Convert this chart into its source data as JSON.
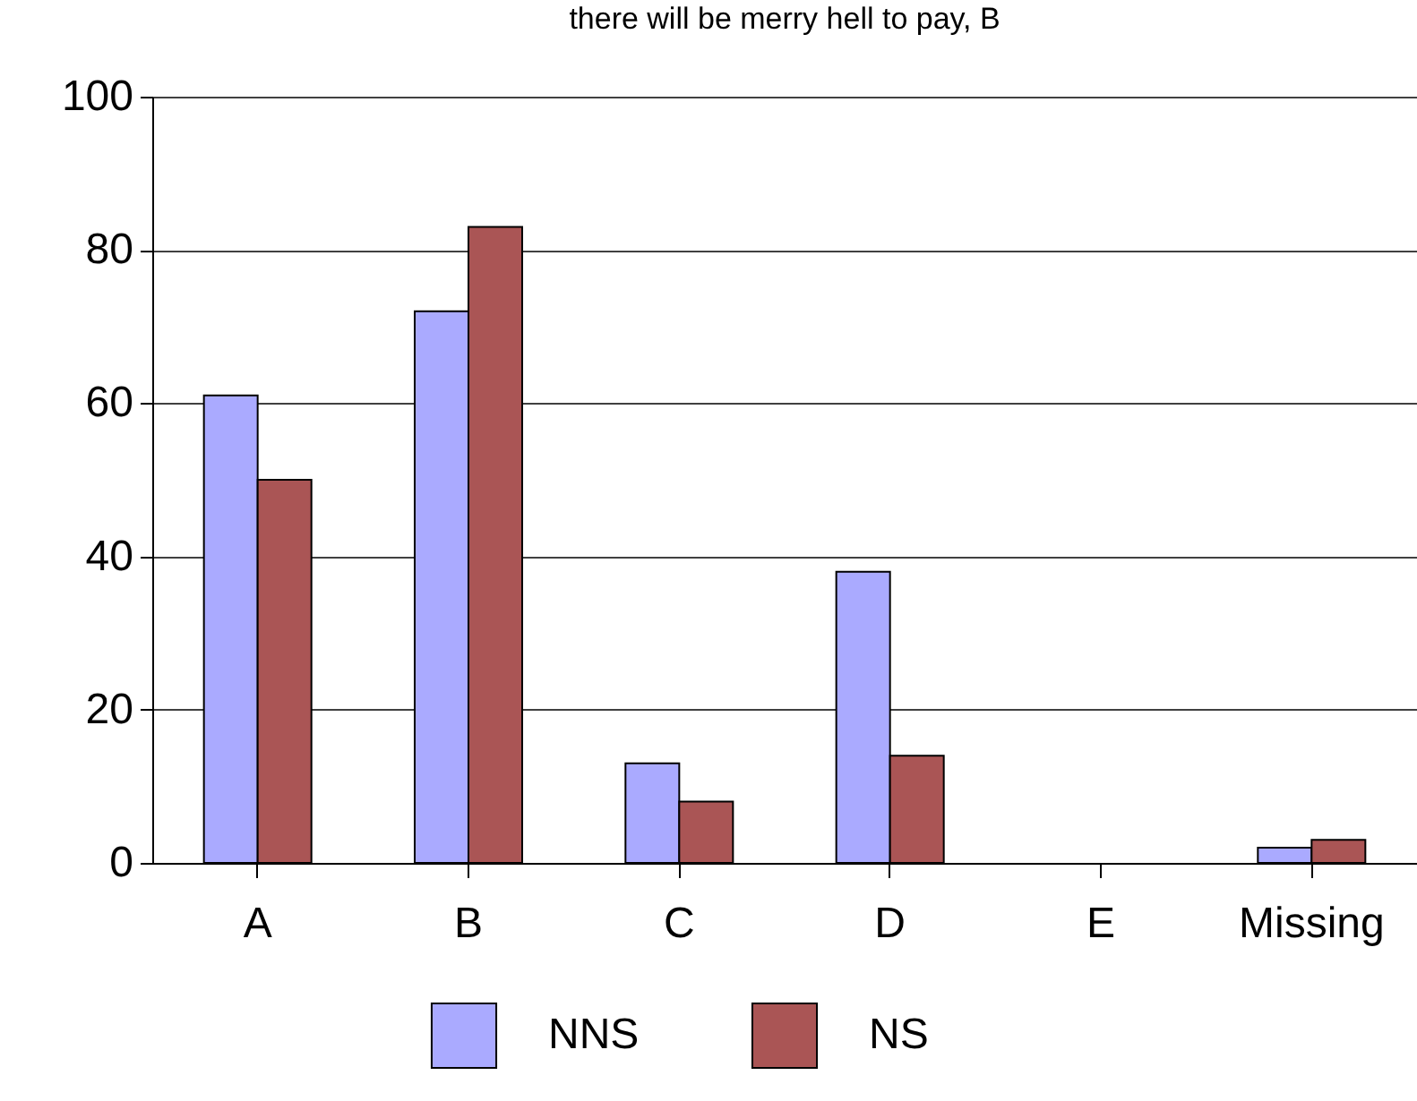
{
  "chart_data": {
    "type": "bar",
    "title": "there will be merry hell to pay, B",
    "categories": [
      "A",
      "B",
      "C",
      "D",
      "E",
      "Missing"
    ],
    "series": [
      {
        "name": "NNS",
        "color": "#aaaaff",
        "values": [
          61,
          72,
          13,
          38,
          null,
          2
        ]
      },
      {
        "name": "NS",
        "color": "#aa5555",
        "values": [
          50,
          83,
          8,
          14,
          null,
          3
        ]
      }
    ],
    "ylim": [
      0,
      100
    ],
    "yticks": [
      0,
      20,
      40,
      60,
      80,
      100
    ],
    "grid": "y",
    "legend": "bottom"
  }
}
